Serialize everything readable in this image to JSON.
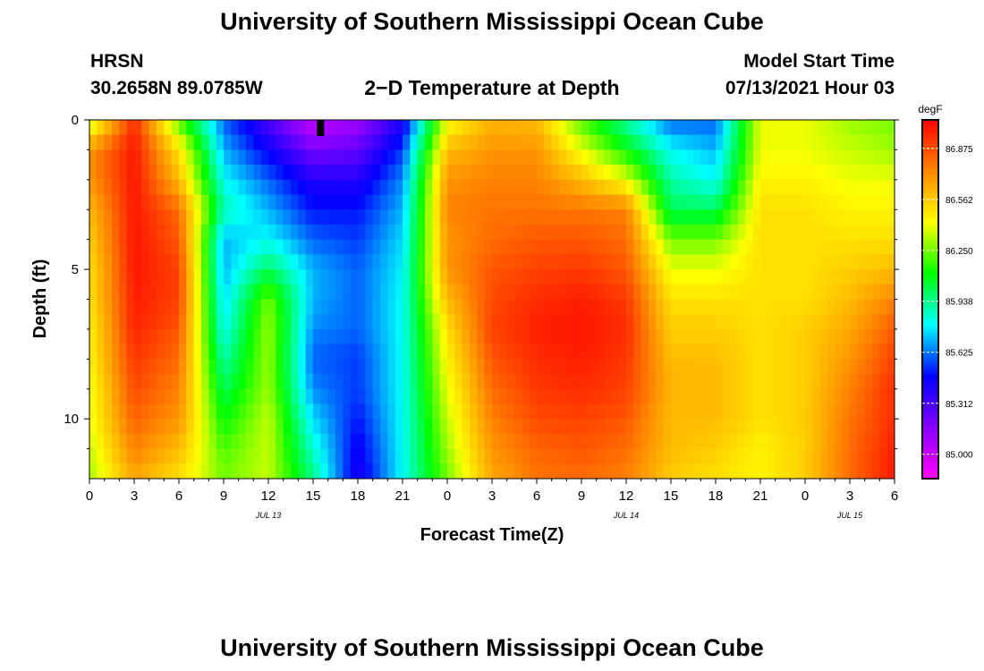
{
  "page": {
    "title_top": "University of Southern Mississippi Ocean Cube",
    "title_bottom": "University of Southern Mississippi Ocean Cube",
    "station": "HRSN",
    "coords": "30.2658N  89.0785W",
    "plot_title": "2−D Temperature at Depth",
    "model_start_label": "Model Start Time",
    "model_start_value": "07/13/2021 Hour 03"
  },
  "chart_data": {
    "type": "heatmap",
    "title": "2−D Temperature at Depth",
    "xlabel": "Forecast Time(Z)",
    "ylabel": "Depth (ft)",
    "x_range_hours": [
      0,
      54
    ],
    "y_range_ft": [
      0,
      12
    ],
    "x_ticks": [
      {
        "h": 0,
        "label": "0"
      },
      {
        "h": 3,
        "label": "3"
      },
      {
        "h": 6,
        "label": "6"
      },
      {
        "h": 9,
        "label": "9"
      },
      {
        "h": 12,
        "label": "12"
      },
      {
        "h": 15,
        "label": "15"
      },
      {
        "h": 18,
        "label": "18"
      },
      {
        "h": 21,
        "label": "21"
      },
      {
        "h": 24,
        "label": "0"
      },
      {
        "h": 27,
        "label": "3"
      },
      {
        "h": 30,
        "label": "6"
      },
      {
        "h": 33,
        "label": "9"
      },
      {
        "h": 36,
        "label": "12"
      },
      {
        "h": 39,
        "label": "15"
      },
      {
        "h": 42,
        "label": "18"
      },
      {
        "h": 45,
        "label": "21"
      },
      {
        "h": 48,
        "label": "0"
      },
      {
        "h": 51,
        "label": "3"
      },
      {
        "h": 54,
        "label": "6"
      }
    ],
    "date_labels": [
      {
        "h": 12,
        "label": "JUL 13"
      },
      {
        "h": 36,
        "label": "JUL 14"
      },
      {
        "h": 51,
        "label": "JUL 15"
      }
    ],
    "y_ticks": [
      {
        "d": 0,
        "label": "0"
      },
      {
        "d": 5,
        "label": "5"
      },
      {
        "d": 10,
        "label": "10"
      }
    ],
    "current_time_marker_h": 15.5,
    "colorbar": {
      "units": "degF",
      "min": 84.85,
      "max": 87.05,
      "labels": [
        "86.875",
        "86.562",
        "86.250",
        "85.938",
        "85.625",
        "85.312",
        "85.000"
      ],
      "stops": [
        "#ff00ff",
        "#8800ff",
        "#0000ff",
        "#00ffff",
        "#00ff00",
        "#ffff00",
        "#ff8800",
        "#ff0000"
      ]
    },
    "rows_depth_ft": [
      0,
      1,
      2,
      3,
      4,
      5,
      6,
      7,
      8,
      9,
      10,
      11,
      12
    ],
    "cols_hours": [
      0,
      3,
      6,
      9,
      12,
      15,
      18,
      21,
      24,
      27,
      30,
      33,
      36,
      39,
      42,
      45,
      48,
      51,
      54
    ],
    "values_degF": [
      [
        86.3,
        86.95,
        86.2,
        85.6,
        85.3,
        85.0,
        85.1,
        85.4,
        86.4,
        86.62,
        86.6,
        86.2,
        85.9,
        85.6,
        85.6,
        86.4,
        86.4,
        86.3,
        86.25
      ],
      [
        86.7,
        87.0,
        86.5,
        85.7,
        85.45,
        85.2,
        85.25,
        85.55,
        86.6,
        86.7,
        86.7,
        86.4,
        86.1,
        85.8,
        85.7,
        86.4,
        86.4,
        86.35,
        86.3
      ],
      [
        86.7,
        87.0,
        86.6,
        85.8,
        85.6,
        85.4,
        85.4,
        85.65,
        86.7,
        86.75,
        86.75,
        86.6,
        86.4,
        85.9,
        85.8,
        86.45,
        86.45,
        86.4,
        86.4
      ],
      [
        86.6,
        87.0,
        86.8,
        85.9,
        85.7,
        85.5,
        85.5,
        85.7,
        86.75,
        86.78,
        86.78,
        86.78,
        86.75,
        86.0,
        86.0,
        86.5,
        86.5,
        86.45,
        86.45
      ],
      [
        86.55,
        87.0,
        86.85,
        85.7,
        85.8,
        85.6,
        85.55,
        85.75,
        86.7,
        86.8,
        86.85,
        86.85,
        86.8,
        86.25,
        86.25,
        86.5,
        86.5,
        86.5,
        86.5
      ],
      [
        86.5,
        87.0,
        86.9,
        85.7,
        86.0,
        85.7,
        85.6,
        85.78,
        86.7,
        86.85,
        86.9,
        86.92,
        86.85,
        86.4,
        86.4,
        86.5,
        86.5,
        86.55,
        86.6
      ],
      [
        86.5,
        86.98,
        86.9,
        85.75,
        86.25,
        85.7,
        85.6,
        85.8,
        86.6,
        86.88,
        86.95,
        86.98,
        86.92,
        86.5,
        86.5,
        86.5,
        86.5,
        86.6,
        86.75
      ],
      [
        86.45,
        86.97,
        86.85,
        85.8,
        86.3,
        85.65,
        85.6,
        85.8,
        86.5,
        86.9,
        86.98,
        87.0,
        86.95,
        86.55,
        86.55,
        86.5,
        86.55,
        86.65,
        86.85
      ],
      [
        86.45,
        86.92,
        86.8,
        85.9,
        86.3,
        85.6,
        85.55,
        85.8,
        86.45,
        86.85,
        86.95,
        86.98,
        86.92,
        86.6,
        86.6,
        86.5,
        86.55,
        86.7,
        86.9
      ],
      [
        86.4,
        86.88,
        86.75,
        86.0,
        86.3,
        85.65,
        85.55,
        85.8,
        86.4,
        86.8,
        86.92,
        86.95,
        86.9,
        86.62,
        86.6,
        86.5,
        86.55,
        86.75,
        86.95
      ],
      [
        86.4,
        86.82,
        86.7,
        86.1,
        86.35,
        85.75,
        85.5,
        85.8,
        86.35,
        86.75,
        86.88,
        86.9,
        86.85,
        86.6,
        86.6,
        86.5,
        86.55,
        86.78,
        86.95
      ],
      [
        86.35,
        86.75,
        86.6,
        86.2,
        86.35,
        85.85,
        85.45,
        85.8,
        86.3,
        86.7,
        86.82,
        86.85,
        86.8,
        86.6,
        86.55,
        86.45,
        86.55,
        86.8,
        86.98
      ],
      [
        86.3,
        86.65,
        86.5,
        86.25,
        86.35,
        85.95,
        85.4,
        85.8,
        86.25,
        86.65,
        86.78,
        86.8,
        86.75,
        86.55,
        86.5,
        86.45,
        86.55,
        86.8,
        87.0
      ]
    ]
  }
}
